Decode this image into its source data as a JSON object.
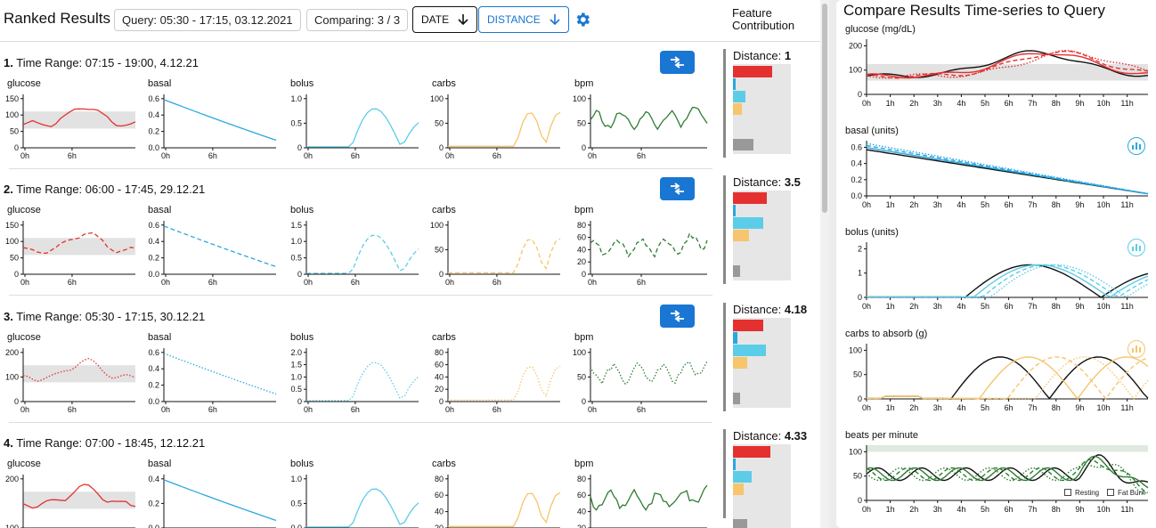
{
  "header": {
    "title": "Ranked Results",
    "query": "Query: 05:30 - 17:15, 03.12.2021",
    "comparing": "Comparing: 3 / 3",
    "sort_date": "DATE",
    "sort_distance": "DISTANCE",
    "feature_contribution_line1": "Feature",
    "feature_contribution_line2": "Contribution"
  },
  "colors": {
    "glucose": "#e53030",
    "basal": "#29a8e0",
    "bolus": "#5ccde8",
    "carbs": "#f6c56d",
    "bpm": "#2e7d32",
    "accent": "#1976d2"
  },
  "rows": [
    {
      "index": "1.",
      "range": "Time Range: 07:15 - 19:00, 4.12.21",
      "distance_label": "Distance:",
      "distance": "1",
      "contrib": [
        0.68,
        0.05,
        0.22,
        0.16,
        0.35
      ]
    },
    {
      "index": "2.",
      "range": "Time Range: 06:00 - 17:45, 29.12.21",
      "distance_label": "Distance:",
      "distance": "3.5",
      "contrib": [
        0.58,
        0.05,
        0.52,
        0.27,
        0.12
      ]
    },
    {
      "index": "3.",
      "range": "Time Range: 05:30 - 17:15, 30.12.21",
      "distance_label": "Distance:",
      "distance": "4.18",
      "contrib": [
        0.52,
        0.08,
        0.57,
        0.24,
        0.12
      ]
    },
    {
      "index": "4.",
      "range": "Time Range: 07:00 - 18:45, 12.12.21",
      "distance_label": "Distance:",
      "distance": "4.33",
      "contrib": [
        0.65,
        0.05,
        0.32,
        0.19,
        0.25
      ]
    }
  ],
  "mini_labels": {
    "glucose": "glucose",
    "basal": "basal",
    "bolus": "bolus",
    "carbs": "carbs",
    "bpm": "bpm"
  },
  "mini_axes": {
    "x_ticks": [
      "0h",
      "6h"
    ],
    "rows": [
      {
        "glucose": [
          "0",
          "50",
          "100",
          "150"
        ],
        "basal": [
          "0.0",
          "0.2",
          "0.4",
          "0.6"
        ],
        "bolus": [
          "0",
          "0.5",
          "1.0"
        ],
        "carbs": [
          "0",
          "50",
          "100"
        ],
        "bpm": [
          "0",
          "50",
          "100"
        ]
      },
      {
        "glucose": [
          "0",
          "50",
          "100",
          "150"
        ],
        "basal": [
          "0.0",
          "0.2",
          "0.4",
          "0.6"
        ],
        "bolus": [
          "0",
          "0.5",
          "1.0",
          "1.5"
        ],
        "carbs": [
          "0",
          "50",
          "100"
        ],
        "bpm": [
          "0",
          "20",
          "40",
          "60",
          "80"
        ]
      },
      {
        "glucose": [
          "0",
          "100",
          "200"
        ],
        "basal": [
          "0.0",
          "0.2",
          "0.4",
          "0.6"
        ],
        "bolus": [
          "0",
          "0.5",
          "1.0",
          "1.5",
          "2.0"
        ],
        "carbs": [
          "0",
          "20",
          "40",
          "60",
          "80"
        ],
        "bpm": [
          "0",
          "50",
          "100"
        ]
      },
      {
        "glucose": [
          "100",
          "200"
        ],
        "basal": [
          "0.0",
          "0.2",
          "0.4"
        ],
        "bolus": [
          "0.0",
          "0.5",
          "1.0"
        ],
        "carbs": [
          "20",
          "40",
          "60",
          "80"
        ],
        "bpm": [
          "20",
          "40",
          "60",
          "80"
        ]
      }
    ]
  },
  "right": {
    "title": "Compare Results Time-series to Query",
    "x_ticks": [
      "0h",
      "1h",
      "2h",
      "3h",
      "4h",
      "5h",
      "6h",
      "7h",
      "8h",
      "9h",
      "10h",
      "11h"
    ],
    "charts": [
      {
        "label": "glucose (mg/dL)",
        "y_ticks": [
          "0",
          "100",
          "200"
        ]
      },
      {
        "label": "basal (units)",
        "y_ticks": [
          "0.0",
          "0.2",
          "0.4",
          "0.6"
        ]
      },
      {
        "label": "bolus (units)",
        "y_ticks": [
          "0",
          "1",
          "2"
        ]
      },
      {
        "label": "carbs to absorb (g)",
        "y_ticks": [
          "0",
          "50",
          "100"
        ]
      },
      {
        "label": "beats per minute",
        "y_ticks": [
          "0",
          "50",
          "100"
        ]
      }
    ],
    "legend": {
      "resting": "Resting",
      "fat_burn": "Fat Burn"
    }
  }
}
